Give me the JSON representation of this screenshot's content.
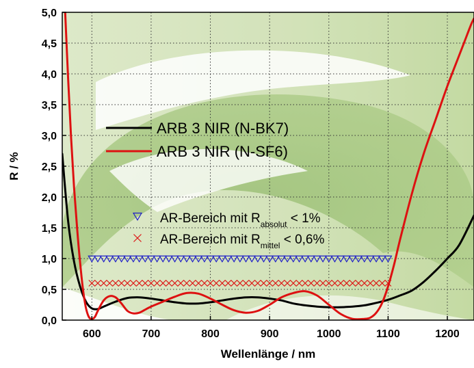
{
  "chart_data": {
    "type": "line",
    "xlabel": "Wellenlänge / nm",
    "ylabel": "R / %",
    "xlim": [
      550,
      1245
    ],
    "ylim": [
      0,
      5
    ],
    "x_ticks": [
      "600",
      "700",
      "800",
      "900",
      "1000",
      "1100",
      "1200"
    ],
    "y_ticks": [
      "0,0",
      "0,5",
      "1,0",
      "1,5",
      "2,0",
      "2,5",
      "3,0",
      "3,5",
      "4,0",
      "4,5",
      "5,0"
    ],
    "grid": true,
    "legend_placement": "upper-left",
    "series": [
      {
        "name": "ARB 3 NIR (N-BK7)",
        "color": "#000000",
        "x": [
          550,
          560,
          570,
          580,
          590,
          600,
          610,
          620,
          640,
          660,
          680,
          700,
          720,
          740,
          760,
          780,
          800,
          820,
          840,
          860,
          880,
          900,
          920,
          940,
          960,
          980,
          1000,
          1020,
          1040,
          1060,
          1080,
          1100,
          1120,
          1140,
          1160,
          1180,
          1200,
          1220,
          1245
        ],
        "y": [
          2.7,
          1.6,
          0.95,
          0.55,
          0.3,
          0.19,
          0.18,
          0.22,
          0.3,
          0.36,
          0.37,
          0.35,
          0.32,
          0.29,
          0.27,
          0.27,
          0.29,
          0.32,
          0.35,
          0.37,
          0.37,
          0.35,
          0.32,
          0.27,
          0.24,
          0.22,
          0.21,
          0.21,
          0.22,
          0.24,
          0.28,
          0.33,
          0.4,
          0.48,
          0.62,
          0.8,
          1.0,
          1.22,
          1.7
        ]
      },
      {
        "name": "ARB 3 NIR (N-SF6)",
        "color": "#dd1111",
        "x": [
          555,
          560,
          565,
          570,
          575,
          580,
          585,
          590,
          595,
          600,
          605,
          610,
          620,
          630,
          640,
          650,
          660,
          670,
          680,
          690,
          700,
          720,
          740,
          760,
          780,
          800,
          820,
          840,
          860,
          880,
          900,
          920,
          940,
          960,
          980,
          1000,
          1020,
          1040,
          1060,
          1070,
          1080,
          1090,
          1100,
          1110,
          1120,
          1140,
          1160,
          1180,
          1200,
          1220,
          1230,
          1240,
          1245
        ],
        "y": [
          5.0,
          3.9,
          2.95,
          2.15,
          1.5,
          0.95,
          0.5,
          0.2,
          0.05,
          0.02,
          0.05,
          0.15,
          0.32,
          0.39,
          0.37,
          0.27,
          0.15,
          0.11,
          0.12,
          0.17,
          0.22,
          0.3,
          0.38,
          0.44,
          0.43,
          0.35,
          0.25,
          0.16,
          0.12,
          0.15,
          0.25,
          0.37,
          0.44,
          0.47,
          0.4,
          0.25,
          0.1,
          0.02,
          0.02,
          0.04,
          0.12,
          0.28,
          0.55,
          0.9,
          1.3,
          2.05,
          2.7,
          3.25,
          3.8,
          4.3,
          4.55,
          4.8,
          4.9
        ]
      }
    ],
    "markers": [
      {
        "name_prefix": "AR-Bereich mit R",
        "name_sub": "absolut",
        "name_suffix": " < 1%",
        "symbol": "triangle-down",
        "color": "#1e1ec8",
        "y": 1.0,
        "x_start": 600,
        "x_end": 1100,
        "step": 10
      },
      {
        "name_prefix": "AR-Bereich mit R",
        "name_sub": "mittel",
        "name_suffix": " < 0,6%",
        "symbol": "cross",
        "color": "#dd1111",
        "y": 0.6,
        "x_start": 600,
        "x_end": 1100,
        "step": 10
      }
    ]
  }
}
